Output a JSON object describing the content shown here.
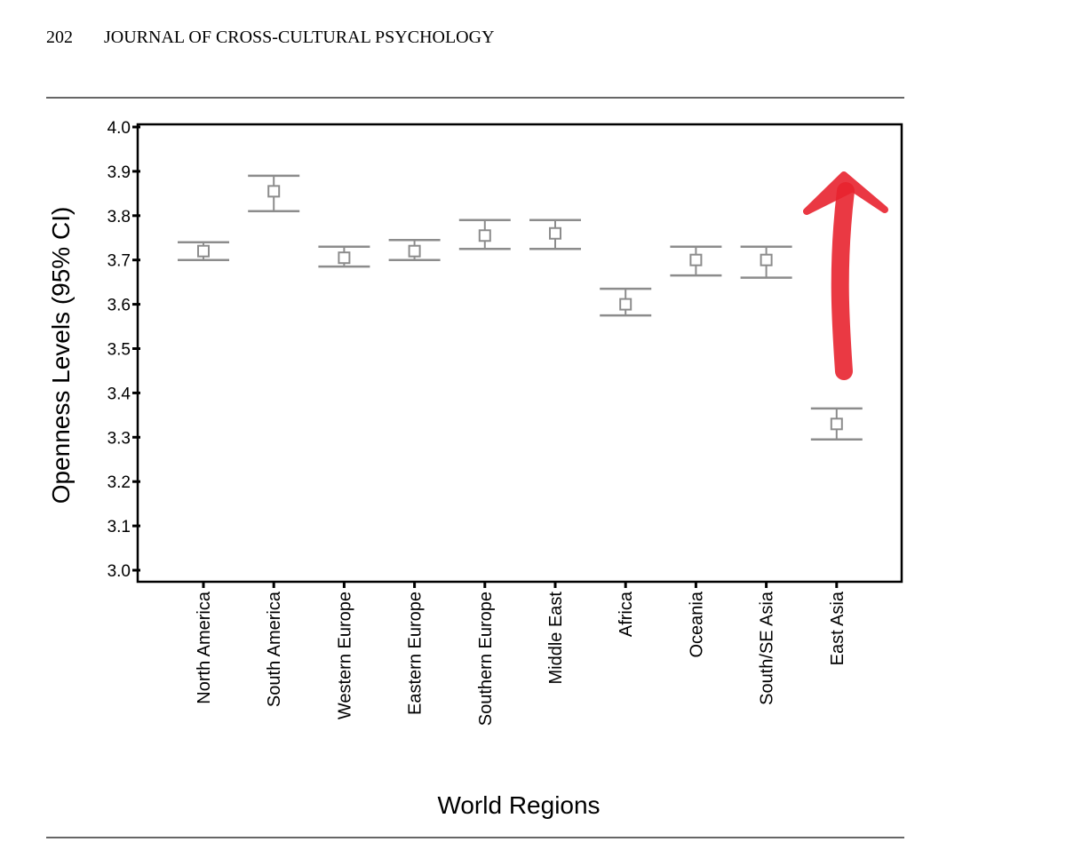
{
  "header": {
    "page_number": "202",
    "journal": "JOURNAL OF CROSS-CULTURAL PSYCHOLOGY"
  },
  "chart_data": {
    "type": "errorbar",
    "x_label": "World Regions",
    "y_label": "Openness Levels (95% CI)",
    "categories": [
      "North America",
      "South America",
      "Western Europe",
      "Eastern Europe",
      "Southern Europe",
      "Middle East",
      "Africa",
      "Oceania",
      "South/SE Asia",
      "East Asia"
    ],
    "values": [
      3.72,
      3.855,
      3.705,
      3.72,
      3.755,
      3.76,
      3.6,
      3.7,
      3.7,
      3.33
    ],
    "ci_low": [
      3.7,
      3.81,
      3.685,
      3.7,
      3.725,
      3.725,
      3.575,
      3.665,
      3.66,
      3.295
    ],
    "ci_high": [
      3.74,
      3.89,
      3.73,
      3.745,
      3.79,
      3.79,
      3.635,
      3.73,
      3.73,
      3.365
    ],
    "color": "#8c8c8c",
    "ylim": [
      3.0,
      4.0
    ],
    "yticks": [
      {
        "value": 3.0,
        "label": "3.0"
      },
      3.1,
      3.2,
      3.3,
      3.4,
      3.5,
      3.6,
      3.7,
      3.8,
      3.9,
      {
        "value": 4.0,
        "label": "4.0"
      }
    ]
  }
}
